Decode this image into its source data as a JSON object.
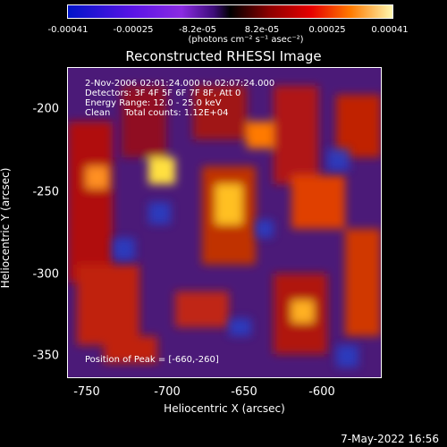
{
  "colorbar": {
    "ticks": [
      "-0.00041",
      "-0.00025",
      "-8.2e-05",
      "8.2e-05",
      "0.00025",
      "0.00041"
    ],
    "units": "(photons cm⁻² s⁻¹ asec⁻²)"
  },
  "title": "Reconstructed RHESSI Image",
  "info": {
    "time": "2-Nov-2006 02:01:24.000 to 02:07:24.000",
    "detectors": "Detectors: 3F 4F 5F 6F 7F 8F, Att 0",
    "energy": "Energy Range: 12.0 - 25.0 keV",
    "clean": "Clean     Total counts: 1.12E+04",
    "peak": "Position of Peak = [-660,-260]"
  },
  "axes": {
    "xlabel": "Heliocentric X (arcsec)",
    "ylabel": "Heliocentric Y (arcsec)",
    "xticks": [
      "-750",
      "-700",
      "-650",
      "-600"
    ],
    "yticks": [
      "-200",
      "-250",
      "-300",
      "-350"
    ]
  },
  "footer": {
    "date": "7-May-2022 16:56"
  }
}
